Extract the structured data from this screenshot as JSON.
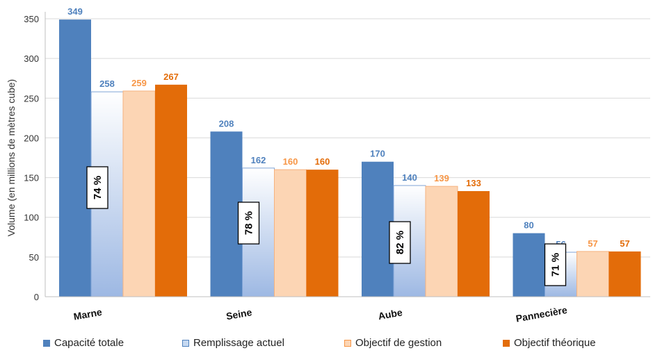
{
  "chart_data": {
    "type": "bar",
    "ylabel": "Volume (en millions de mètres cube)",
    "ylim": [
      0,
      350
    ],
    "yticks": [
      0,
      50,
      100,
      150,
      200,
      250,
      300,
      350
    ],
    "grid": true,
    "legend_position": "bottom",
    "categories": [
      "Marne",
      "Seine",
      "Aube",
      "Pannecière"
    ],
    "series": [
      {
        "name": "Capacité totale",
        "values": [
          349,
          208,
          170,
          80
        ],
        "color": "#4f81bd"
      },
      {
        "name": "Remplissage actuel",
        "values": [
          258,
          162,
          140,
          56
        ],
        "color": "#c6d9f1"
      },
      {
        "name": "Objectif de gestion",
        "values": [
          259,
          160,
          139,
          57
        ],
        "color": "#fcd5b4"
      },
      {
        "name": "Objectif théorique",
        "values": [
          267,
          160,
          133,
          57
        ],
        "color": "#e36c09"
      }
    ],
    "label_colors": [
      "#4f81bd",
      "#4f81bd",
      "#f79646",
      "#e36c09"
    ],
    "fill_percentages": [
      "74 %",
      "78 %",
      "82 %",
      "71 %"
    ]
  }
}
